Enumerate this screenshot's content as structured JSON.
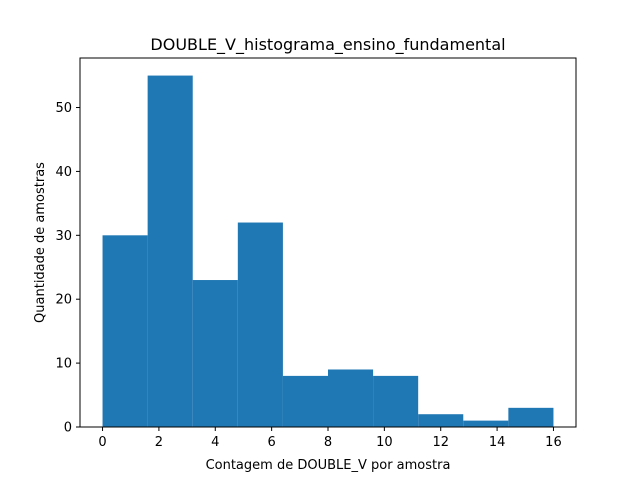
{
  "chart_data": {
    "type": "bar",
    "title": "DOUBLE_V_histograma_ensino_fundamental",
    "xlabel": "Contagem de DOUBLE_V por amostra",
    "ylabel": "Quantidade de amostras",
    "bins": [
      {
        "start": 0.0,
        "end": 1.6,
        "value": 30
      },
      {
        "start": 1.6,
        "end": 3.2,
        "value": 55
      },
      {
        "start": 3.2,
        "end": 4.8,
        "value": 23
      },
      {
        "start": 4.8,
        "end": 6.4,
        "value": 32
      },
      {
        "start": 6.4,
        "end": 8.0,
        "value": 8
      },
      {
        "start": 8.0,
        "end": 9.6,
        "value": 9
      },
      {
        "start": 9.6,
        "end": 11.2,
        "value": 8
      },
      {
        "start": 11.2,
        "end": 12.8,
        "value": 2
      },
      {
        "start": 12.8,
        "end": 14.4,
        "value": 1
      },
      {
        "start": 14.4,
        "end": 16.0,
        "value": 3
      }
    ],
    "xlim": [
      -0.8,
      16.8
    ],
    "ylim": [
      0,
      57.75
    ],
    "xticks": [
      "0",
      "2",
      "4",
      "6",
      "8",
      "10",
      "12",
      "14",
      "16"
    ],
    "yticks": [
      "0",
      "10",
      "20",
      "30",
      "40",
      "50"
    ],
    "bar_color": "#1f77b4",
    "grid": false
  }
}
